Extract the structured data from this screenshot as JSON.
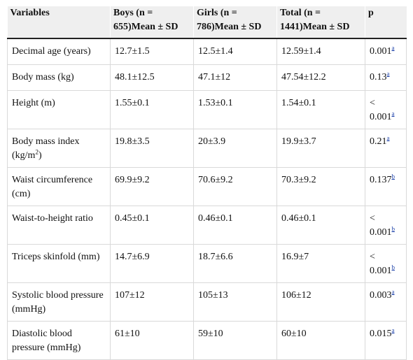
{
  "table": {
    "headers": [
      "Variables",
      "Boys (n = 655)Mean ± SD",
      "Girls (n = 786)Mean ± SD",
      "Total (n = 1441)Mean ± SD",
      "p"
    ],
    "rows": [
      {
        "variable": "Decimal age (years)",
        "boys": "12.7±1.5",
        "girls": "12.5±1.4",
        "total": "12.59±1.4",
        "p": "0.001",
        "note": "a"
      },
      {
        "variable": "Body mass (kg)",
        "boys": "48.1±12.5",
        "girls": "47.1±12",
        "total": "47.54±12.2",
        "p": "0.13",
        "note": "a"
      },
      {
        "variable": "Height (m)",
        "boys": "1.55±0.1",
        "girls": "1.53±0.1",
        "total": "1.54±0.1",
        "p": "< 0.001",
        "note": "a"
      },
      {
        "variable": "Body mass index (kg/m",
        "variable_sup": "2",
        "variable_tail": ")",
        "boys": "19.8±3.5",
        "girls": "20±3.9",
        "total": "19.9±3.7",
        "p": "0.21",
        "note": "a"
      },
      {
        "variable": "Waist circumference (cm)",
        "boys": "69.9±9.2",
        "girls": "70.6±9.2",
        "total": "70.3±9.2",
        "p": "0.137",
        "note": "b"
      },
      {
        "variable": "Waist-to-height ratio",
        "boys": "0.45±0.1",
        "girls": "0.46±0.1",
        "total": "0.46±0.1",
        "p": "< 0.001",
        "note": "b"
      },
      {
        "variable": "Triceps skinfold (mm)",
        "boys": "14.7±6.9",
        "girls": "18.7±6.6",
        "total": "16.9±7",
        "p": "< 0.001",
        "note": "b"
      },
      {
        "variable": "Systolic blood pressure (mmHg)",
        "boys": "107±12",
        "girls": "105±13",
        "total": "106±12",
        "p": "0.003",
        "note": "a"
      },
      {
        "variable": "Diastolic blood pressure (mmHg)",
        "boys": "61±10",
        "girls": "59±10",
        "total": "60±10",
        "p": "0.015",
        "note": "a"
      }
    ]
  }
}
